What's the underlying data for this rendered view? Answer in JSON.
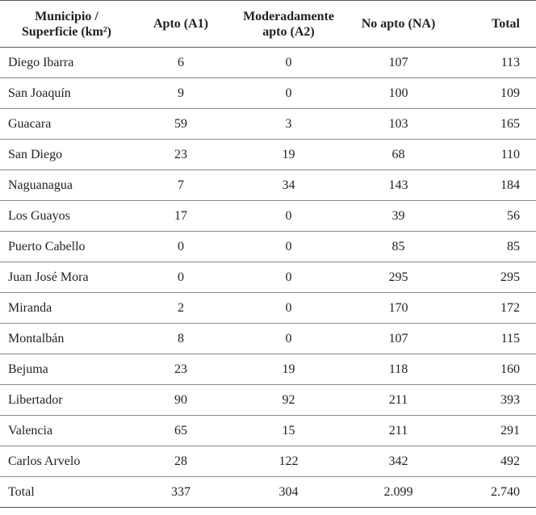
{
  "table": {
    "header": [
      [
        "Municipio /",
        "Superficie (km²)"
      ],
      [
        "Apto (A1)"
      ],
      [
        "Moderadamente",
        "apto (A2)"
      ],
      [
        "No apto (NA)"
      ],
      [
        "Total"
      ]
    ],
    "rows": [
      [
        "Diego Ibarra",
        "6",
        "0",
        "107",
        "113"
      ],
      [
        "San Joaquín",
        "9",
        "0",
        "100",
        "109"
      ],
      [
        "Guacara",
        "59",
        "3",
        "103",
        "165"
      ],
      [
        "San Diego",
        "23",
        "19",
        "68",
        "110"
      ],
      [
        "Naguanagua",
        "7",
        "34",
        "143",
        "184"
      ],
      [
        "Los Guayos",
        "17",
        "0",
        "39",
        "56"
      ],
      [
        "Puerto Cabello",
        "0",
        "0",
        "85",
        "85"
      ],
      [
        "Juan José Mora",
        "0",
        "0",
        "295",
        "295"
      ],
      [
        "Miranda",
        "2",
        "0",
        "170",
        "172"
      ],
      [
        "Montalbán",
        "8",
        "0",
        "107",
        "115"
      ],
      [
        "Bejuma",
        "23",
        "19",
        "118",
        "160"
      ],
      [
        "Libertador",
        "90",
        "92",
        "211",
        "393"
      ],
      [
        "Valencia",
        "65",
        "15",
        "211",
        "291"
      ],
      [
        "Carlos Arvelo",
        "28",
        "122",
        "342",
        "492"
      ],
      [
        "Total",
        "337",
        "304",
        "2.099",
        "2.740"
      ]
    ]
  }
}
